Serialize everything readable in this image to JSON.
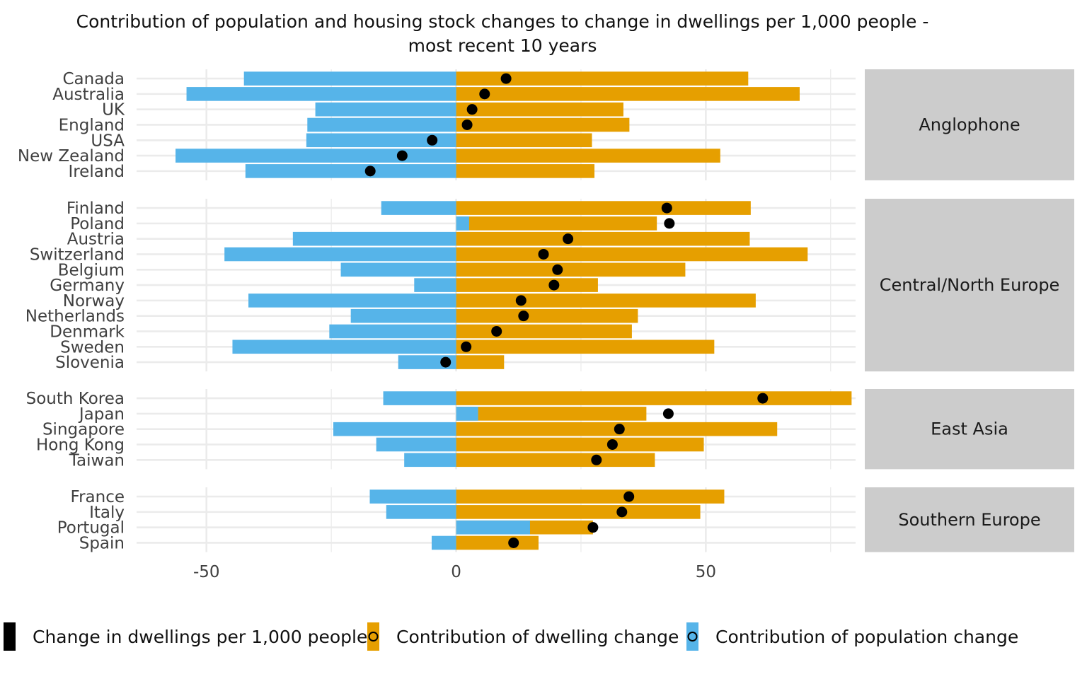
{
  "title_lines": [
    "Contribution of population and housing stock changes to change in dwellings per 1,000 people -",
    "most recent 10 years"
  ],
  "colors": {
    "dwelling": "#E69F00",
    "population": "#56B4E9",
    "net_point": "#000000",
    "grid": "#EBEBEB",
    "strip_bg": "#CCCCCC"
  },
  "legend": [
    {
      "label": "Change in dwellings per 1,000 people",
      "key": "net"
    },
    {
      "label": "Contribution of dwelling change",
      "key": "dwelling"
    },
    {
      "label": "Contribution of population change",
      "key": "population"
    }
  ],
  "chart_data": {
    "type": "bar",
    "orientation": "horizontal",
    "xlim": [
      -64,
      80
    ],
    "x_ticks": [
      -50,
      0,
      50
    ],
    "x_tick_labels": [
      "-50",
      "0",
      "50"
    ],
    "grid": true,
    "legend_position": "bottom",
    "series_names": [
      "Contribution of dwelling change",
      "Contribution of population change",
      "Change in dwellings per 1,000 people"
    ],
    "panels": [
      {
        "label": "Anglophone",
        "countries": [
          {
            "name": "Canada",
            "dwelling": 58.5,
            "population": -42.5,
            "net": 10
          },
          {
            "name": "Australia",
            "dwelling": 68.8,
            "population": -54,
            "net": 5.7
          },
          {
            "name": "UK",
            "dwelling": 33.5,
            "population": -28.2,
            "net": 3.2
          },
          {
            "name": "England",
            "dwelling": 34.7,
            "population": -29.8,
            "net": 2.2
          },
          {
            "name": "USA",
            "dwelling": 27.2,
            "population": -30,
            "net": -4.8
          },
          {
            "name": "New Zealand",
            "dwelling": 52.9,
            "population": -56.2,
            "net": -10.8
          },
          {
            "name": "Ireland",
            "dwelling": 27.7,
            "population": -42.2,
            "net": -17.2
          }
        ]
      },
      {
        "label": "Central/North Europe",
        "countries": [
          {
            "name": "Finland",
            "dwelling": 59,
            "population": -15,
            "net": 42.2
          },
          {
            "name": "Poland",
            "dwelling": 40.2,
            "population": 2.6,
            "net": 42.7
          },
          {
            "name": "Austria",
            "dwelling": 58.8,
            "population": -32.7,
            "net": 22.4
          },
          {
            "name": "Switzerland",
            "dwelling": 70.4,
            "population": -46.4,
            "net": 17.5
          },
          {
            "name": "Belgium",
            "dwelling": 45.9,
            "population": -23.1,
            "net": 20.3
          },
          {
            "name": "Germany",
            "dwelling": 28.4,
            "population": -8.4,
            "net": 19.6
          },
          {
            "name": "Norway",
            "dwelling": 60,
            "population": -41.6,
            "net": 13
          },
          {
            "name": "Netherlands",
            "dwelling": 36.4,
            "population": -21.1,
            "net": 13.5
          },
          {
            "name": "Denmark",
            "dwelling": 35.2,
            "population": -25.4,
            "net": 8.1
          },
          {
            "name": "Sweden",
            "dwelling": 51.7,
            "population": -44.8,
            "net": 2
          },
          {
            "name": "Slovenia",
            "dwelling": 9.6,
            "population": -11.6,
            "net": -2.1
          }
        ]
      },
      {
        "label": "East Asia",
        "countries": [
          {
            "name": "South Korea",
            "dwelling": 79.2,
            "population": -14.6,
            "net": 61.4
          },
          {
            "name": "Japan",
            "dwelling": 38.1,
            "population": 4.4,
            "net": 42.5
          },
          {
            "name": "Singapore",
            "dwelling": 64.3,
            "population": -24.6,
            "net": 32.7
          },
          {
            "name": "Hong Kong",
            "dwelling": 49.6,
            "population": -16,
            "net": 31.3
          },
          {
            "name": "Taiwan",
            "dwelling": 39.8,
            "population": -10.4,
            "net": 28.1
          }
        ]
      },
      {
        "label": "Southern Europe",
        "countries": [
          {
            "name": "France",
            "dwelling": 53.7,
            "population": -17.3,
            "net": 34.6
          },
          {
            "name": "Italy",
            "dwelling": 48.9,
            "population": -14,
            "net": 33.2
          },
          {
            "name": "Portugal",
            "dwelling": 27.4,
            "population": 14.8,
            "net": 27.4
          },
          {
            "name": "Spain",
            "dwelling": 16.5,
            "population": -4.9,
            "net": 11.5
          }
        ]
      }
    ]
  }
}
